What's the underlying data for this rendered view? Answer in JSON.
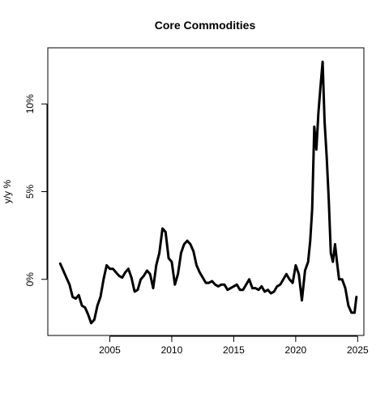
{
  "chart_data": {
    "type": "line",
    "title": "Core Commodities",
    "xlabel": "",
    "ylabel": "y/y %",
    "xlim": [
      2000.0,
      2025.5
    ],
    "ylim": [
      -3.2,
      13.2
    ],
    "x_ticks": [
      2005,
      2010,
      2015,
      2020,
      2025
    ],
    "x_tick_labels": [
      "2005",
      "2010",
      "2015",
      "2020",
      "2025"
    ],
    "y_ticks": [
      0,
      5,
      10
    ],
    "y_tick_labels": [
      "0%",
      "5%",
      "10%"
    ],
    "grid": false,
    "legend": "none",
    "line_color": "#000000",
    "series": [
      {
        "x": [
          2001.0,
          2001.25,
          2001.5,
          2001.75,
          2002.0,
          2002.25,
          2002.5,
          2002.75,
          2003.0,
          2003.25,
          2003.5,
          2003.75,
          2004.0,
          2004.25,
          2004.5,
          2004.75,
          2005.0,
          2005.25,
          2005.5,
          2005.75,
          2006.0,
          2006.25,
          2006.5,
          2006.75,
          2007.0,
          2007.25,
          2007.5,
          2007.75,
          2008.0,
          2008.25,
          2008.5,
          2008.75,
          2009.0,
          2009.25,
          2009.5,
          2009.75,
          2010.0,
          2010.25,
          2010.5,
          2010.75,
          2011.0,
          2011.25,
          2011.5,
          2011.75,
          2012.0,
          2012.25,
          2012.5,
          2012.75,
          2013.0,
          2013.25,
          2013.5,
          2013.75,
          2014.0,
          2014.25,
          2014.5,
          2014.75,
          2015.0,
          2015.25,
          2015.5,
          2015.75,
          2016.0,
          2016.25,
          2016.5,
          2016.75,
          2017.0,
          2017.25,
          2017.5,
          2017.75,
          2018.0,
          2018.25,
          2018.5,
          2018.75,
          2019.0,
          2019.25,
          2019.5,
          2019.75,
          2020.0,
          2020.25,
          2020.5,
          2020.75,
          2021.0,
          2021.17,
          2021.33,
          2021.5,
          2021.67,
          2021.83,
          2022.0,
          2022.17,
          2022.33,
          2022.5,
          2022.67,
          2022.83,
          2023.0,
          2023.17,
          2023.33,
          2023.5,
          2023.75,
          2024.0,
          2024.25,
          2024.5,
          2024.75,
          2024.9
        ],
        "values": [
          0.9,
          0.5,
          0.1,
          -0.3,
          -1.0,
          -1.1,
          -0.9,
          -1.5,
          -1.6,
          -2.0,
          -2.5,
          -2.3,
          -1.5,
          -1.0,
          0.0,
          0.8,
          0.6,
          0.6,
          0.4,
          0.2,
          0.1,
          0.4,
          0.6,
          0.1,
          -0.7,
          -0.6,
          0.0,
          0.2,
          0.5,
          0.3,
          -0.5,
          0.8,
          1.5,
          2.9,
          2.7,
          1.2,
          1.0,
          -0.3,
          0.3,
          1.5,
          2.0,
          2.2,
          2.0,
          1.6,
          0.8,
          0.4,
          0.1,
          -0.2,
          -0.2,
          -0.1,
          -0.3,
          -0.4,
          -0.3,
          -0.3,
          -0.6,
          -0.5,
          -0.4,
          -0.3,
          -0.6,
          -0.6,
          -0.3,
          0.0,
          -0.5,
          -0.5,
          -0.6,
          -0.4,
          -0.7,
          -0.6,
          -0.8,
          -0.7,
          -0.4,
          -0.3,
          0.0,
          0.3,
          0.0,
          -0.2,
          0.8,
          0.3,
          -1.2,
          0.5,
          1.0,
          2.2,
          4.0,
          8.7,
          7.4,
          9.5,
          11.0,
          12.4,
          9.0,
          7.0,
          4.5,
          1.5,
          1.0,
          2.0,
          1.0,
          0.0,
          0.0,
          -0.5,
          -1.5,
          -1.9,
          -1.9,
          -1.0
        ]
      }
    ]
  }
}
